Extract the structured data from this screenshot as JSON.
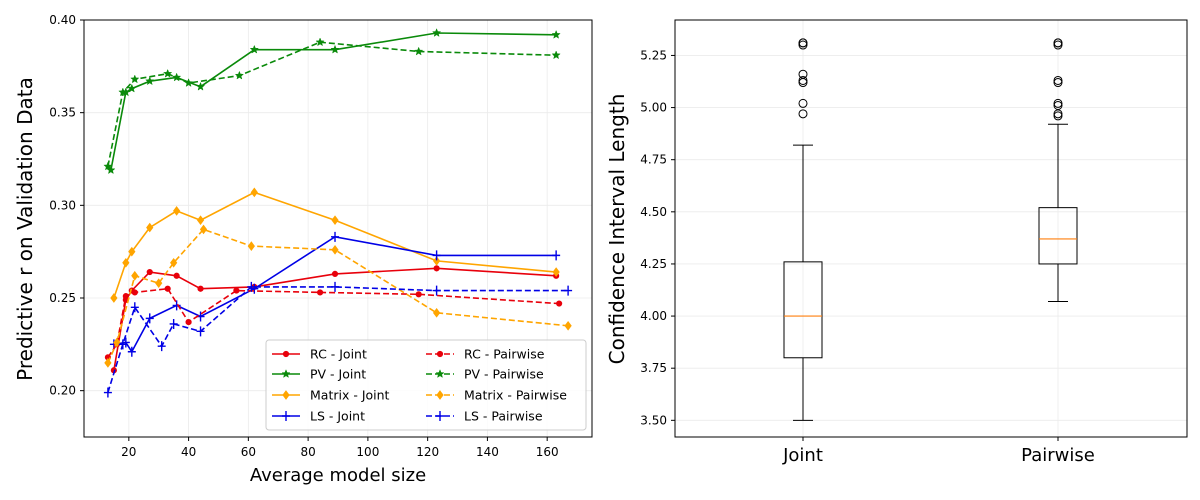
{
  "chart_data": [
    {
      "type": "line",
      "xlabel": "Average model size",
      "ylabel": "Predictive r on Validation Data",
      "xlim": [
        5,
        175
      ],
      "ylim": [
        0.175,
        0.4
      ],
      "xticks": [
        20,
        40,
        60,
        80,
        100,
        120,
        140,
        160
      ],
      "yticks": [
        0.2,
        0.25,
        0.3,
        0.35,
        0.4
      ],
      "ytick_labels": [
        "0.20",
        "0.25",
        "0.30",
        "0.35",
        "0.40"
      ],
      "grid": true,
      "legend_position": "lower-right",
      "series": [
        {
          "name": "RC - Joint",
          "color": "#e8000b",
          "style": "solid",
          "marker": "dot",
          "x": [
            15,
            19,
            21,
            27,
            36,
            44,
            62,
            89,
            123,
            163
          ],
          "y": [
            0.211,
            0.249,
            0.254,
            0.264,
            0.262,
            0.255,
            0.256,
            0.263,
            0.266,
            0.262
          ]
        },
        {
          "name": "PV - Joint",
          "color": "#0a8a0a",
          "style": "solid",
          "marker": "star",
          "x": [
            14,
            19,
            21,
            27,
            36,
            44,
            62,
            89,
            123,
            163
          ],
          "y": [
            0.319,
            0.361,
            0.363,
            0.367,
            0.369,
            0.364,
            0.384,
            0.384,
            0.393,
            0.392
          ]
        },
        {
          "name": "Matrix - Joint",
          "color": "#ffa500",
          "style": "solid",
          "marker": "diamond",
          "x": [
            15,
            19,
            21,
            27,
            36,
            44,
            62,
            89,
            123,
            163
          ],
          "y": [
            0.25,
            0.269,
            0.275,
            0.288,
            0.297,
            0.292,
            0.307,
            0.292,
            0.27,
            0.264
          ]
        },
        {
          "name": "LS - Joint",
          "color": "#0000e6",
          "style": "solid",
          "marker": "plus",
          "x": [
            15,
            19,
            21,
            27,
            36,
            44,
            62,
            89,
            123,
            163
          ],
          "y": [
            0.225,
            0.226,
            0.221,
            0.239,
            0.246,
            0.24,
            0.255,
            0.283,
            0.273,
            0.273
          ]
        },
        {
          "name": "RC - Pairwise",
          "color": "#e8000b",
          "style": "dashed",
          "marker": "dot",
          "x": [
            13,
            16,
            19,
            22,
            33,
            40,
            56,
            84,
            117,
            164
          ],
          "y": [
            0.218,
            0.225,
            0.251,
            0.253,
            0.255,
            0.237,
            0.254,
            0.253,
            0.252,
            0.247
          ]
        },
        {
          "name": "PV - Pairwise",
          "color": "#0a8a0a",
          "style": "dashed",
          "marker": "star",
          "x": [
            13,
            18,
            22,
            33,
            40,
            57,
            84,
            117,
            163
          ],
          "y": [
            0.321,
            0.361,
            0.368,
            0.371,
            0.366,
            0.37,
            0.388,
            0.383,
            0.381
          ],
          "x_fix": true
        },
        {
          "name": "Matrix - Pairwise",
          "color": "#ffa500",
          "style": "dashed",
          "marker": "diamond",
          "x": [
            13,
            16,
            22,
            30,
            35,
            45,
            61,
            89,
            123,
            167
          ],
          "y": [
            0.215,
            0.226,
            0.262,
            0.258,
            0.269,
            0.287,
            0.278,
            0.276,
            0.242,
            0.235
          ]
        },
        {
          "name": "LS - Pairwise",
          "color": "#0000e6",
          "style": "dashed",
          "marker": "plus",
          "x": [
            13,
            18,
            22,
            31,
            35,
            44,
            61,
            89,
            123,
            167
          ],
          "y": [
            0.199,
            0.225,
            0.245,
            0.224,
            0.236,
            0.232,
            0.256,
            0.256,
            0.254,
            0.254
          ]
        }
      ]
    },
    {
      "type": "box",
      "ylabel": "Confidence Interval Length",
      "ylim": [
        3.42,
        5.42
      ],
      "yticks": [
        3.5,
        3.75,
        4.0,
        4.25,
        4.5,
        4.75,
        5.0,
        5.25
      ],
      "ytick_labels": [
        "3.50",
        "3.75",
        "4.00",
        "4.25",
        "4.50",
        "4.75",
        "5.00",
        "5.25"
      ],
      "grid": true,
      "boxes": [
        {
          "label": "Joint",
          "whisker_low": 3.5,
          "q1": 3.8,
          "median": 4.0,
          "q3": 4.26,
          "whisker_high": 4.82,
          "outliers": [
            4.97,
            5.02,
            5.12,
            5.13,
            5.16,
            5.3,
            5.31,
            5.31
          ]
        },
        {
          "label": "Pairwise",
          "whisker_low": 4.07,
          "q1": 4.25,
          "median": 4.37,
          "q3": 4.52,
          "whisker_high": 4.92,
          "outliers": [
            4.96,
            4.97,
            5.01,
            5.02,
            5.12,
            5.13,
            5.3,
            5.31,
            5.31
          ]
        }
      ],
      "box_color": "#000000",
      "median_color": "#ff7f0e"
    }
  ]
}
